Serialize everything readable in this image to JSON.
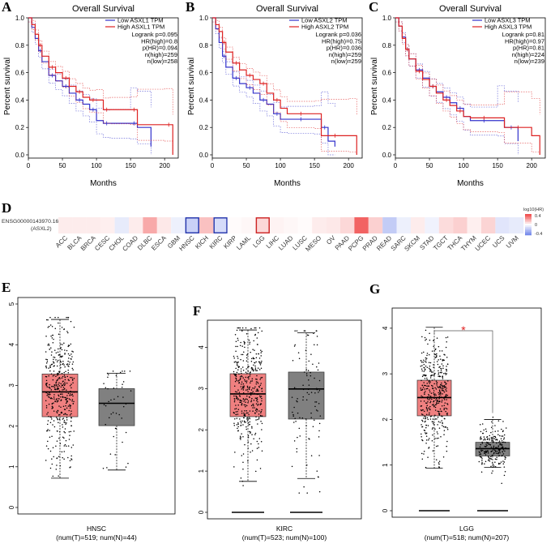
{
  "panel_letters": [
    "A",
    "B",
    "C",
    "D",
    "E",
    "F",
    "G"
  ],
  "chart_data": [
    {
      "type": "line",
      "panel": "A",
      "title": "Overall Survival",
      "xlabel": "Months",
      "ylabel": "Percent survival",
      "xlim": [
        0,
        220
      ],
      "ylim": [
        0,
        1
      ],
      "xticks": [
        "0",
        "50",
        "100",
        "150",
        "200"
      ],
      "yticks": [
        "0.0",
        "0.2",
        "0.4",
        "0.6",
        "0.8",
        "1.0"
      ],
      "stats": [
        "Logrank p=0.095",
        "HR(high)=0.8",
        "p(HR)=0.094",
        "n(high)=259",
        "n(low)=258"
      ],
      "series": [
        {
          "name": "Low ASXL1 TPM",
          "color": "#3333cc",
          "x": [
            0,
            5,
            10,
            15,
            20,
            30,
            40,
            50,
            60,
            70,
            80,
            90,
            100,
            110,
            120,
            150,
            160,
            180
          ],
          "y": [
            1,
            0.93,
            0.85,
            0.76,
            0.68,
            0.58,
            0.54,
            0.5,
            0.45,
            0.4,
            0.37,
            0.33,
            0.25,
            0.23,
            0.23,
            0.23,
            0.2,
            0.06
          ]
        },
        {
          "name": "High ASXL1 TPM",
          "color": "#dd2222",
          "x": [
            0,
            5,
            10,
            15,
            20,
            30,
            40,
            50,
            60,
            70,
            80,
            90,
            100,
            110,
            120,
            150,
            160,
            200,
            212
          ],
          "y": [
            1,
            0.95,
            0.88,
            0.8,
            0.72,
            0.64,
            0.6,
            0.56,
            0.5,
            0.46,
            0.42,
            0.4,
            0.4,
            0.33,
            0.33,
            0.33,
            0.22,
            0.22,
            0
          ]
        }
      ]
    },
    {
      "type": "line",
      "panel": "B",
      "title": "Overall Survival",
      "xlabel": "Months",
      "ylabel": "Percent survival",
      "xlim": [
        0,
        220
      ],
      "ylim": [
        0,
        1
      ],
      "xticks": [
        "0",
        "50",
        "100",
        "150",
        "200"
      ],
      "yticks": [
        "0.0",
        "0.2",
        "0.4",
        "0.6",
        "0.8",
        "1.0"
      ],
      "stats": [
        "Logrank p=0.036",
        "HR(high)=0.75",
        "p(HR)=0.036",
        "n(high)=259",
        "n(low)=259"
      ],
      "series": [
        {
          "name": "Low ASXL2 TPM",
          "color": "#3333cc",
          "x": [
            0,
            5,
            10,
            15,
            20,
            30,
            40,
            50,
            60,
            70,
            80,
            90,
            100,
            110,
            150,
            160,
            170,
            180
          ],
          "y": [
            1,
            0.92,
            0.82,
            0.72,
            0.64,
            0.56,
            0.52,
            0.49,
            0.45,
            0.4,
            0.37,
            0.3,
            0.26,
            0.26,
            0.26,
            0.2,
            0.1,
            0.06
          ]
        },
        {
          "name": "High ASXL2 TPM",
          "color": "#dd2222",
          "x": [
            0,
            5,
            10,
            15,
            20,
            30,
            40,
            50,
            60,
            70,
            80,
            90,
            100,
            110,
            150,
            160,
            200,
            212
          ],
          "y": [
            1,
            0.95,
            0.9,
            0.82,
            0.75,
            0.67,
            0.62,
            0.58,
            0.55,
            0.52,
            0.45,
            0.4,
            0.34,
            0.3,
            0.3,
            0.14,
            0.14,
            0
          ]
        }
      ]
    },
    {
      "type": "line",
      "panel": "C",
      "title": "Overall Survival",
      "xlabel": "Months",
      "ylabel": "Percent survival",
      "xlim": [
        0,
        220
      ],
      "ylim": [
        0,
        1
      ],
      "xticks": [
        "0",
        "50",
        "100",
        "150",
        "200"
      ],
      "yticks": [
        "0.0",
        "0.2",
        "0.4",
        "0.6",
        "0.8",
        "1.0"
      ],
      "stats": [
        "Logrank p=0.81",
        "HR(high)=0.97",
        "p(HR)=0.81",
        "n(high)=224",
        "n(low)=239"
      ],
      "series": [
        {
          "name": "Low ASXL3 TPM",
          "color": "#3333cc",
          "x": [
            0,
            5,
            10,
            15,
            20,
            30,
            40,
            50,
            60,
            70,
            80,
            90,
            100,
            110,
            150,
            160,
            180
          ],
          "y": [
            1,
            0.94,
            0.86,
            0.77,
            0.7,
            0.62,
            0.56,
            0.5,
            0.46,
            0.42,
            0.38,
            0.34,
            0.28,
            0.25,
            0.25,
            0.2,
            0.1
          ]
        },
        {
          "name": "High ASXL3 TPM",
          "color": "#dd2222",
          "x": [
            0,
            5,
            10,
            15,
            20,
            30,
            40,
            50,
            60,
            70,
            80,
            90,
            100,
            110,
            150,
            160,
            200,
            212
          ],
          "y": [
            1,
            0.94,
            0.85,
            0.77,
            0.7,
            0.61,
            0.55,
            0.5,
            0.45,
            0.4,
            0.36,
            0.32,
            0.28,
            0.27,
            0.27,
            0.2,
            0.14,
            0
          ]
        }
      ]
    },
    {
      "type": "heatmap",
      "panel": "D",
      "row_label": [
        "ENSG00000143970.16",
        "(ASXL2)"
      ],
      "legend_title": "log10(HR)",
      "legend_ticks": [
        "0.4",
        "0",
        "-0.4"
      ],
      "categories": [
        "ACC",
        "BLCA",
        "BRCA",
        "CESC",
        "CHOL",
        "COAD",
        "DLBC",
        "ESCA",
        "GBM",
        "HNSC",
        "KICH",
        "KIRC",
        "KIRP",
        "LAML",
        "LGG",
        "LIHC",
        "LUAD",
        "LUSC",
        "MESO",
        "OV",
        "PAAD",
        "PCPG",
        "PRAD",
        "READ",
        "SARC",
        "SKCM",
        "STAD",
        "TGCT",
        "THCA",
        "THYM",
        "UCEC",
        "UCS",
        "UVM"
      ],
      "values": [
        0.05,
        0.05,
        0.05,
        0.04,
        -0.08,
        0.05,
        0.22,
        0.06,
        -0.06,
        -0.18,
        0.16,
        -0.14,
        0.01,
        0.02,
        0.1,
        0.03,
        0.02,
        0.01,
        0.05,
        0.06,
        0.1,
        0.4,
        0.12,
        -0.2,
        -0.06,
        0.05,
        -0.05,
        0.09,
        0.12,
        0.04,
        0.11,
        -0.1,
        -0.08
      ],
      "highlighted": {
        "HNSC": "#2233aa",
        "KIRC": "#2233aa",
        "LGG": "#cc2222"
      }
    },
    {
      "type": "box",
      "panel": "E",
      "xlabel": "HNSC",
      "caption": "(num(T)=519; num(N)=44)",
      "ylim": [
        0,
        5
      ],
      "yticks": [
        "0",
        "1",
        "2",
        "3",
        "4",
        "5"
      ],
      "groups": [
        {
          "name": "Tumor",
          "color": "#f08080",
          "min": 0.72,
          "q1": 2.23,
          "median": 2.84,
          "q3": 3.28,
          "max": 4.62,
          "n": 519
        },
        {
          "name": "Normal",
          "color": "#808080",
          "min": 0.92,
          "q1": 2.01,
          "median": 2.56,
          "q3": 2.92,
          "max": 3.3,
          "n": 44
        }
      ]
    },
    {
      "type": "box",
      "panel": "F",
      "xlabel": "KIRC",
      "caption": "(num(T)=523; num(N)=100)",
      "ylim": [
        0,
        4.5
      ],
      "yticks": [
        "0",
        "1",
        "2",
        "3",
        "4"
      ],
      "groups": [
        {
          "name": "Tumor",
          "color": "#f08080",
          "min": 0.75,
          "q1": 2.32,
          "median": 2.87,
          "q3": 3.36,
          "max": 4.42,
          "n": 523
        },
        {
          "name": "Normal",
          "color": "#808080",
          "min": 0.82,
          "q1": 2.26,
          "median": 2.99,
          "q3": 3.4,
          "max": 4.35,
          "n": 100
        }
      ]
    },
    {
      "type": "box",
      "panel": "G",
      "xlabel": "LGG",
      "caption": "(num(T)=518; num(N)=207)",
      "significance": "*",
      "ylim": [
        0,
        4.3
      ],
      "yticks": [
        "0",
        "1",
        "2",
        "3",
        "4"
      ],
      "groups": [
        {
          "name": "Tumor",
          "color": "#f08080",
          "min": 0.93,
          "q1": 2.08,
          "median": 2.48,
          "q3": 2.86,
          "max": 4.02,
          "n": 518
        },
        {
          "name": "Normal",
          "color": "#808080",
          "min": 0.95,
          "q1": 1.2,
          "median": 1.36,
          "q3": 1.5,
          "max": 2.0,
          "n": 207
        }
      ]
    }
  ]
}
